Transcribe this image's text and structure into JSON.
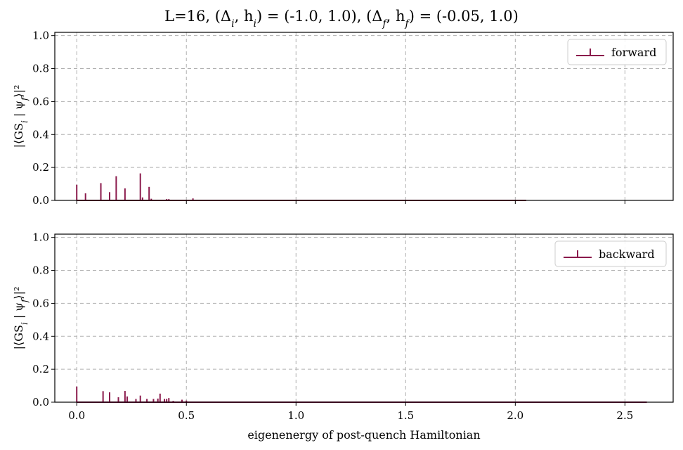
{
  "figure": {
    "title": "L=16,     (Δ_i, h_i) = (-1.0, 1.0),   (Δ_f, h_f) = (-0.05, 1.0)"
  },
  "colors": {
    "stem": "#8b1a4c",
    "grid": "#b0b0b0",
    "axis": "#000000"
  },
  "chart_data": [
    {
      "type": "stem",
      "panel": "top",
      "ylabel": "|⟨GS_i | ψ_f⟩|²",
      "xlabel": "",
      "xlim": [
        -0.1,
        2.72
      ],
      "ylim": [
        0,
        1.02
      ],
      "xticks": [
        0.0,
        0.5,
        1.0,
        1.5,
        2.0,
        2.5
      ],
      "yticks": [
        0.0,
        0.2,
        0.4,
        0.6,
        0.8,
        1.0
      ],
      "grid": true,
      "legend": {
        "label": "forward",
        "placement": "top-right"
      },
      "baseline_range": [
        0.0,
        2.05
      ],
      "series": [
        {
          "name": "forward",
          "x": [
            0.0,
            0.04,
            0.11,
            0.15,
            0.18,
            0.22,
            0.29,
            0.3,
            0.33,
            0.34,
            0.41,
            0.42,
            0.44,
            0.47,
            0.53,
            0.58
          ],
          "y": [
            0.095,
            0.043,
            0.105,
            0.05,
            0.147,
            0.073,
            0.164,
            0.018,
            0.082,
            0.01,
            0.008,
            0.008,
            0.004,
            0.004,
            0.012,
            0.003
          ]
        }
      ]
    },
    {
      "type": "stem",
      "panel": "bottom",
      "ylabel": "|⟨GS_i | ψ_f⟩|²",
      "xlabel": "eigenenergy of post-quench Hamiltonian",
      "xlim": [
        -0.1,
        2.72
      ],
      "ylim": [
        0,
        1.02
      ],
      "xticks": [
        0.0,
        0.5,
        1.0,
        1.5,
        2.0,
        2.5
      ],
      "yticks": [
        0.0,
        0.2,
        0.4,
        0.6,
        0.8,
        1.0
      ],
      "grid": true,
      "legend": {
        "label": "backward",
        "placement": "top-right"
      },
      "baseline_range": [
        0.0,
        2.6
      ],
      "series": [
        {
          "name": "backward",
          "x": [
            0.0,
            0.12,
            0.15,
            0.19,
            0.22,
            0.23,
            0.27,
            0.29,
            0.32,
            0.35,
            0.37,
            0.38,
            0.4,
            0.41,
            0.42,
            0.44,
            0.48,
            0.5
          ],
          "y": [
            0.095,
            0.067,
            0.06,
            0.03,
            0.068,
            0.035,
            0.02,
            0.04,
            0.02,
            0.02,
            0.022,
            0.052,
            0.02,
            0.02,
            0.025,
            0.008,
            0.015,
            0.01
          ]
        }
      ]
    }
  ]
}
